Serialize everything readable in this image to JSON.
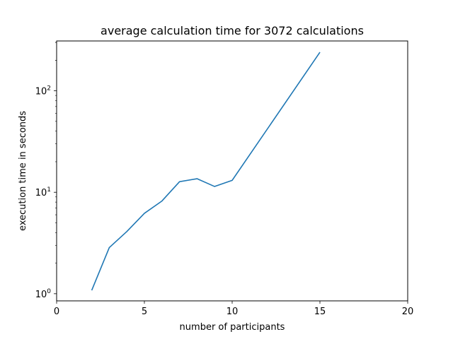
{
  "chart_data": {
    "type": "line",
    "title": "average calculation time for 3072 calculations",
    "xlabel": "number of participants",
    "ylabel": "execution time in seconds",
    "xlim": [
      0,
      20
    ],
    "ylim": [
      0.85,
      310
    ],
    "yscale": "log",
    "grid": false,
    "legend": "none",
    "x_ticks": [
      {
        "value": 0,
        "label": "0"
      },
      {
        "value": 5,
        "label": "5"
      },
      {
        "value": 10,
        "label": "10"
      },
      {
        "value": 15,
        "label": "15"
      },
      {
        "value": 20,
        "label": "20"
      }
    ],
    "y_ticks": [
      {
        "value": 1,
        "base": "10",
        "exp": "0"
      },
      {
        "value": 10,
        "base": "10",
        "exp": "1"
      },
      {
        "value": 100,
        "base": "10",
        "exp": "2"
      }
    ],
    "series": [
      {
        "color": "#1f77b4",
        "x": [
          2,
          3,
          4,
          5,
          6,
          7,
          8,
          9,
          10,
          15
        ],
        "y": [
          1.08,
          2.85,
          4.1,
          6.2,
          8.2,
          12.7,
          13.6,
          11.4,
          13.1,
          240
        ]
      }
    ]
  }
}
